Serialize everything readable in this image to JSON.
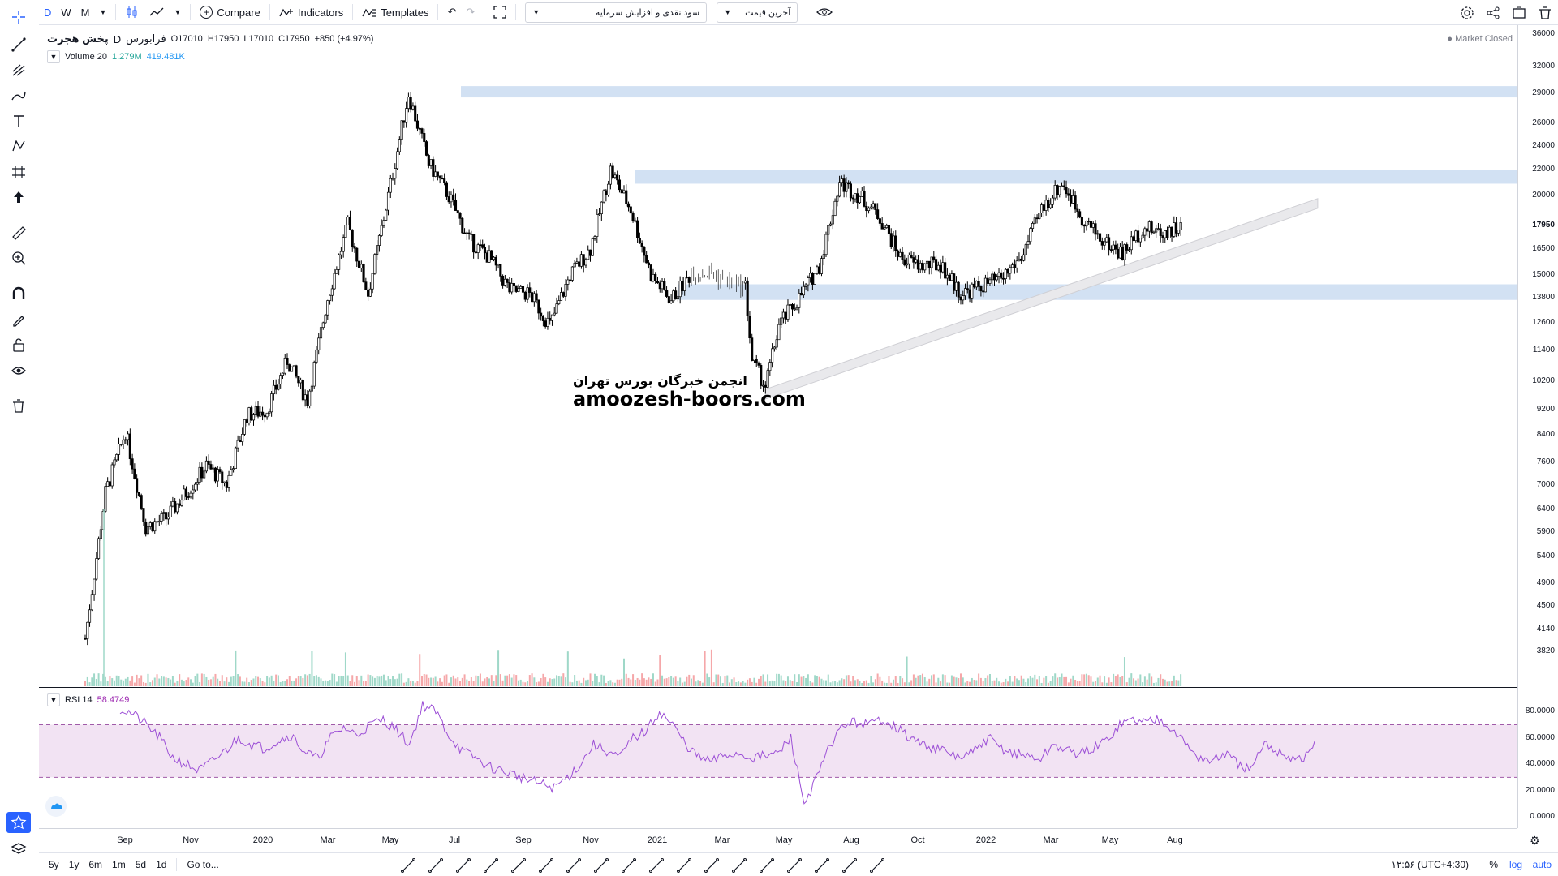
{
  "toolbar": {
    "intervals": [
      "D",
      "W",
      "M"
    ],
    "compare_label": "Compare",
    "indicators_label": "Indicators",
    "templates_label": "Templates",
    "dropdown1_value": "سود نقدی و افزایش سرمایه",
    "dropdown2_value": "آخرین قیمت"
  },
  "legend": {
    "symbol_name": "پخش هجرت",
    "interval": "D",
    "exchange": "فرابورس",
    "open": "O17010",
    "high": "H17950",
    "low": "L17010",
    "close": "C17950",
    "change": "+850 (+4.97%)",
    "volume_label": "Volume 20",
    "volume_val1": "1.279M",
    "volume_val2": "419.481K",
    "rsi_label": "RSI 14",
    "rsi_value": "58.4749",
    "market_status": "Market Closed"
  },
  "watermark": {
    "persian": "انجمن خبرگان بورس تهران",
    "english": "amoozesh-boors.com"
  },
  "price_axis": [
    "36000",
    "32000",
    "29000",
    "26000",
    "24000",
    "22000",
    "20000",
    "17950",
    "16500",
    "15000",
    "13800",
    "12600",
    "11400",
    "10200",
    "9200",
    "8400",
    "7600",
    "7000",
    "6400",
    "5900",
    "5400",
    "4900",
    "4500",
    "4140",
    "3820"
  ],
  "rsi_axis": [
    "80.0000",
    "60.0000",
    "40.0000",
    "20.0000",
    "0.0000"
  ],
  "time_axis": [
    "Sep",
    "Nov",
    "2020",
    "Mar",
    "May",
    "Jul",
    "Sep",
    "Nov",
    "2021",
    "Mar",
    "May",
    "Aug",
    "Oct",
    "2022",
    "Mar",
    "May",
    "Aug"
  ],
  "bottom": {
    "ranges": [
      "5y",
      "1y",
      "6m",
      "1m",
      "5d",
      "1d"
    ],
    "goto_label": "Go to...",
    "clock": "۱۲:۵۶ (UTC+4:30)",
    "percent_label": "%",
    "log_label": "log",
    "auto_label": "auto"
  },
  "colors": {
    "accent": "#2962ff",
    "zone": "#c7daf0",
    "rsi_line": "#9c4fd6",
    "rsi_band": "#f2e3f3",
    "volume_up": "#9fd8c8",
    "volume_down": "#f5a7a9"
  },
  "chart_data": {
    "type": "candlestick",
    "price_scale": "log",
    "current_price": 17950,
    "price_path": [
      [
        0,
        4000
      ],
      [
        3,
        6800
      ],
      [
        6,
        8500
      ],
      [
        9,
        6000
      ],
      [
        12,
        6200
      ],
      [
        15,
        6800
      ],
      [
        18,
        7500
      ],
      [
        21,
        7000
      ],
      [
        24,
        9000
      ],
      [
        27,
        9200
      ],
      [
        30,
        11000
      ],
      [
        33,
        9500
      ],
      [
        36,
        13800
      ],
      [
        39,
        18000
      ],
      [
        42,
        14000
      ],
      [
        45,
        20000
      ],
      [
        48,
        29000
      ],
      [
        51,
        22500
      ],
      [
        54,
        20000
      ],
      [
        57,
        17000
      ],
      [
        60,
        16000
      ],
      [
        63,
        14200
      ],
      [
        66,
        14000
      ],
      [
        69,
        12500
      ],
      [
        72,
        15000
      ],
      [
        75,
        16500
      ],
      [
        78,
        22000
      ],
      [
        81,
        19000
      ],
      [
        84,
        15000
      ],
      [
        87,
        13700
      ],
      [
        90,
        15100
      ],
      [
        93,
        15100
      ],
      [
        96,
        14500
      ],
      [
        98,
        14400
      ],
      [
        99,
        11000
      ],
      [
        101,
        10000
      ],
      [
        103,
        12500
      ],
      [
        106,
        13800
      ],
      [
        109,
        15500
      ],
      [
        112,
        21000
      ],
      [
        115,
        20000
      ],
      [
        118,
        18500
      ],
      [
        121,
        16000
      ],
      [
        124,
        15500
      ],
      [
        127,
        15600
      ],
      [
        130,
        14000
      ],
      [
        133,
        14400
      ],
      [
        136,
        14800
      ],
      [
        139,
        16000
      ],
      [
        142,
        19000
      ],
      [
        145,
        21000
      ],
      [
        148,
        18500
      ],
      [
        151,
        17000
      ],
      [
        154,
        16200
      ],
      [
        157,
        17800
      ],
      [
        160,
        17500
      ],
      [
        163,
        17950
      ]
    ],
    "zones": [
      {
        "price_low": 28600,
        "price_high": 29800
      },
      {
        "price_low": 20900,
        "price_high": 22000
      },
      {
        "price_low": 13700,
        "price_high": 14500
      }
    ],
    "trend_channel": {
      "from": [
        101,
        9900
      ],
      "to": [
        183,
        19800
      ]
    },
    "rsi": {
      "band_upper": 70,
      "band_lower": 30,
      "values": [
        82,
        78,
        70,
        60,
        45,
        40,
        35,
        42,
        50,
        60,
        55,
        52,
        58,
        62,
        50,
        44,
        60,
        68,
        62,
        70,
        74,
        66,
        55,
        85,
        80,
        62,
        50,
        45,
        38,
        35,
        32,
        28,
        25,
        22,
        30,
        40,
        55,
        50,
        45,
        60,
        65,
        80,
        70,
        55,
        45,
        42,
        47,
        48,
        45,
        46,
        48,
        60,
        10,
        30,
        55,
        70,
        72,
        70,
        75,
        68,
        60,
        55,
        52,
        48,
        45,
        50,
        60,
        52,
        48,
        46,
        44,
        55,
        50,
        48,
        52,
        58,
        70,
        74,
        72,
        75,
        68,
        55,
        45,
        42,
        48,
        40,
        35,
        55,
        50,
        45,
        44,
        58
      ]
    }
  }
}
